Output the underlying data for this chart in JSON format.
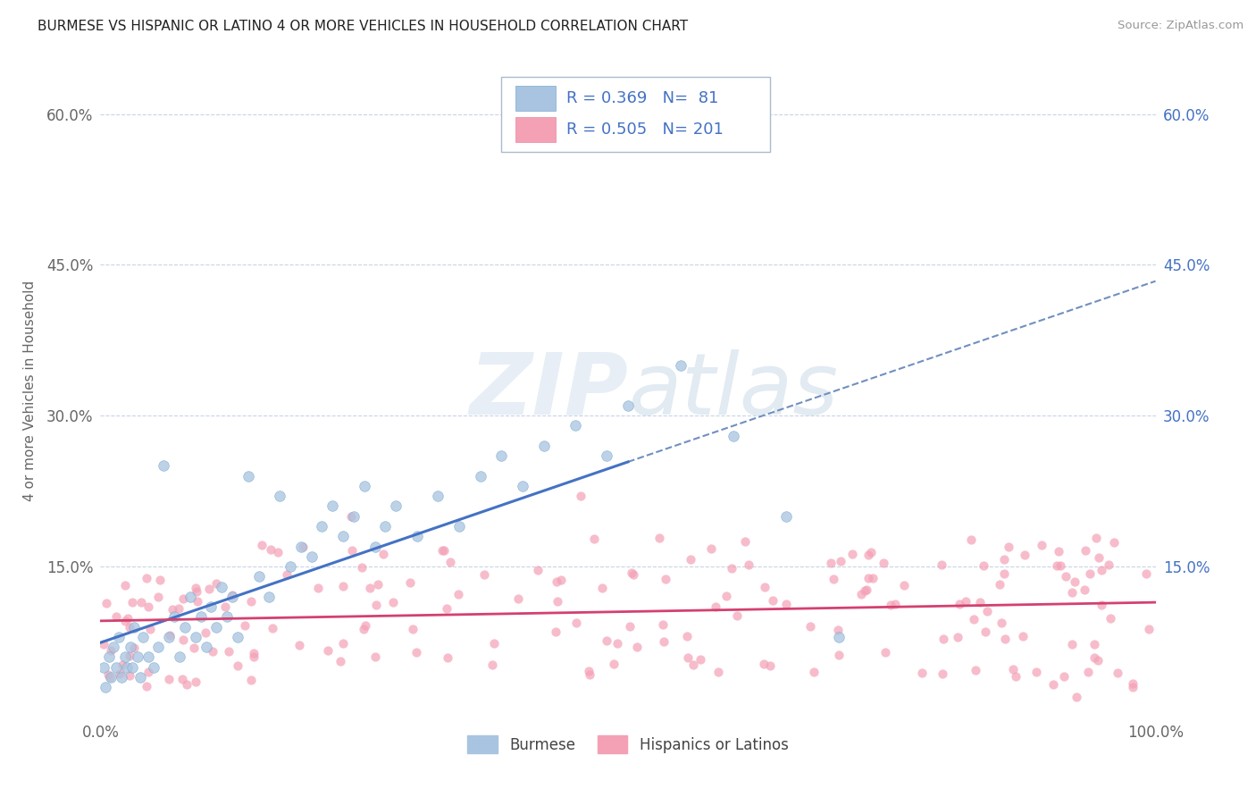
{
  "title": "BURMESE VS HISPANIC OR LATINO 4 OR MORE VEHICLES IN HOUSEHOLD CORRELATION CHART",
  "source": "Source: ZipAtlas.com",
  "ylabel": "4 or more Vehicles in Household",
  "xlim": [
    0,
    100
  ],
  "ylim": [
    0,
    65
  ],
  "burmese_color": "#a8c4e0",
  "burmese_edge_color": "#7aaad0",
  "hispanic_color": "#f4a0b5",
  "hispanic_edge_color": "#e888a0",
  "burmese_line_color": "#4472c4",
  "hispanic_line_color": "#d44070",
  "dashed_line_color": "#7090c0",
  "R_burmese": 0.369,
  "N_burmese": 81,
  "R_hispanic": 0.505,
  "N_hispanic": 201,
  "legend_label_burmese": "Burmese",
  "legend_label_hispanic": "Hispanics or Latinos",
  "watermark_zip": "ZIP",
  "watermark_atlas": "atlas",
  "background_color": "#ffffff",
  "grid_color": "#c8d4e8",
  "label_color_left": "#666666",
  "label_color_right": "#4472c4"
}
